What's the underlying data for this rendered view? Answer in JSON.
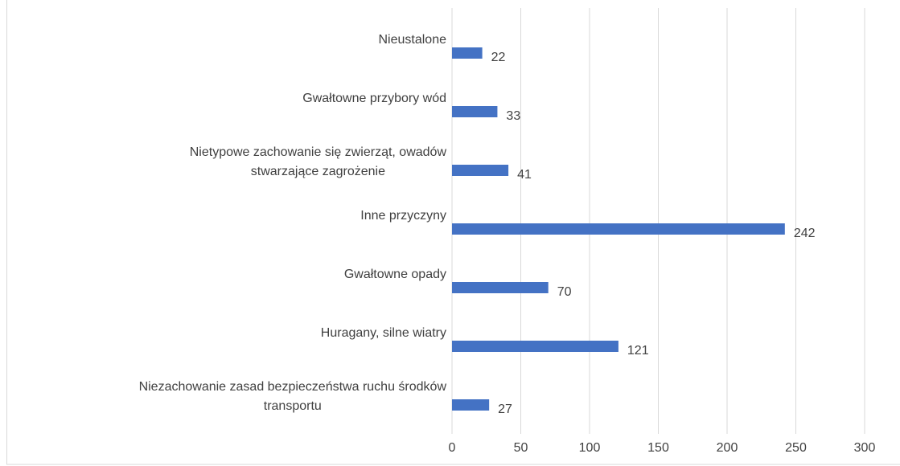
{
  "chart_data": {
    "type": "bar",
    "orientation": "horizontal",
    "categories": [
      [
        "Nieustalone"
      ],
      [
        "Gwałtowne przybory wód"
      ],
      [
        "Nietypowe zachowanie się zwierząt, owadów",
        "stwarzające zagrożenie"
      ],
      [
        "Inne przyczyny"
      ],
      [
        "Gwałtowne opady"
      ],
      [
        "Huragany, silne wiatry"
      ],
      [
        "Niezachowanie zasad bezpieczeństwa ruchu środków",
        "transportu"
      ]
    ],
    "values": [
      22,
      33,
      41,
      242,
      70,
      121,
      27
    ],
    "color": "#4472c4",
    "xlim": [
      0,
      300
    ],
    "xticks": [
      0,
      50,
      100,
      150,
      200,
      250,
      300
    ],
    "grid": true
  }
}
